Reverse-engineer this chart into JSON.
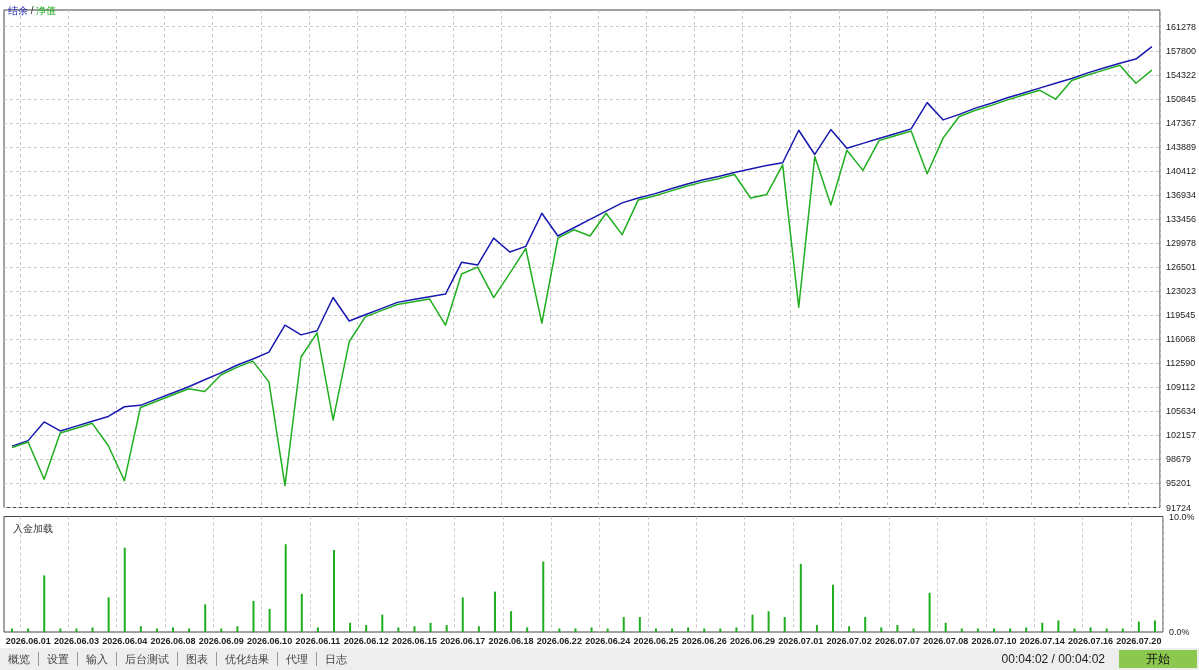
{
  "chart_data": [
    {
      "type": "line",
      "legend": "top left",
      "annotations": [
        "/"
      ],
      "grid": true,
      "marker": "none",
      "tick_labels": "y",
      "categories": [
        null,
        "2026.06.01",
        null,
        null,
        "2026.06.03",
        null,
        null,
        "2026.06.04",
        null,
        null,
        "2026.06.08",
        null,
        null,
        "2026.06.09",
        null,
        null,
        "2026.06.10",
        null,
        null,
        "2026.06.11",
        null,
        null,
        "2026.06.12",
        null,
        null,
        "2026.06.15",
        null,
        null,
        "2026.06.17",
        null,
        null,
        "2026.06.18",
        null,
        null,
        "2026.06.22",
        null,
        null,
        "2026.06.24",
        null,
        null,
        "2026.06.25",
        null,
        null,
        "2026.06.26",
        null,
        null,
        "2026.06.29",
        null,
        null,
        "2026.07.01",
        null,
        null,
        "2026.07.02",
        null,
        null,
        "2026.07.07",
        null,
        null,
        "2026.07.08",
        null,
        null,
        "2026.07.10",
        null,
        null,
        "2026.07.14",
        null,
        null,
        "2026.07.16",
        null,
        null,
        "2026.07.20",
        null
      ],
      "ylim": [
        91724,
        163700
      ],
      "yticks": [
        91724,
        95201,
        98679,
        102157,
        105634,
        109112,
        112590,
        116068,
        119545,
        123023,
        126501,
        129978,
        133456,
        136934,
        140412,
        143889,
        147367,
        150845,
        154322,
        157800,
        161278
      ],
      "series": [
        {
          "name": "结余",
          "color": "#1818b0",
          "values": [
            100600,
            101400,
            104100,
            102800,
            103500,
            104200,
            104900,
            106300,
            106500,
            107400,
            108300,
            109200,
            110200,
            111200,
            112300,
            113200,
            114200,
            118100,
            116700,
            117300,
            122100,
            118700,
            119600,
            120500,
            121400,
            121800,
            122200,
            122600,
            127200,
            126800,
            130700,
            128700,
            129500,
            134300,
            131000,
            132200,
            133400,
            134600,
            135800,
            136500,
            137100,
            137800,
            138500,
            139100,
            139600,
            140200,
            140700,
            141200,
            141600,
            146300,
            142800,
            146400,
            143700,
            144400,
            145100,
            145800,
            146500,
            150300,
            147800,
            148600,
            149500,
            150200,
            151000,
            151700,
            152400,
            153100,
            153800,
            154600,
            155300,
            156000,
            156600,
            158400
          ]
        },
        {
          "name": "净值",
          "color": "#1fae1f",
          "values": [
            100400,
            101200,
            95800,
            102500,
            103200,
            103900,
            100650,
            95600,
            106200,
            107100,
            108000,
            108900,
            108500,
            110900,
            112000,
            112900,
            109900,
            94900,
            113500,
            117000,
            104400,
            115700,
            119300,
            120200,
            121100,
            121500,
            121900,
            118100,
            125500,
            126500,
            122100,
            125600,
            129200,
            118400,
            130700,
            131900,
            131000,
            134300,
            131200,
            136200,
            136800,
            137500,
            138200,
            138800,
            139300,
            139900,
            136500,
            137000,
            141300,
            120700,
            142500,
            135500,
            143400,
            140500,
            144800,
            145500,
            146200,
            140000,
            145200,
            148300,
            149200,
            149900,
            150700,
            151400,
            152100,
            150800,
            153500,
            154300,
            155000,
            155700,
            153100,
            155000
          ]
        }
      ]
    },
    {
      "type": "bar",
      "title": "入金加载",
      "grid": "x",
      "color": "#1fae1f",
      "categories": [
        null,
        "2026.06.01",
        null,
        null,
        "2026.06.03",
        null,
        null,
        "2026.06.04",
        null,
        null,
        "2026.06.08",
        null,
        null,
        "2026.06.09",
        null,
        null,
        "2026.06.10",
        null,
        null,
        "2026.06.11",
        null,
        null,
        "2026.06.12",
        null,
        null,
        "2026.06.15",
        null,
        null,
        "2026.06.17",
        null,
        null,
        "2026.06.18",
        null,
        null,
        "2026.06.22",
        null,
        null,
        "2026.06.24",
        null,
        null,
        "2026.06.25",
        null,
        null,
        "2026.06.26",
        null,
        null,
        "2026.06.29",
        null,
        null,
        "2026.07.01",
        null,
        null,
        "2026.07.02",
        null,
        null,
        "2026.07.07",
        null,
        null,
        "2026.07.08",
        null,
        null,
        "2026.07.10",
        null,
        null,
        "2026.07.14",
        null,
        null,
        "2026.07.16",
        null,
        null,
        "2026.07.20",
        null
      ],
      "values": [
        0.3,
        0.3,
        4.9,
        0.3,
        0.3,
        0.4,
        3.0,
        7.3,
        0.5,
        0.3,
        0.4,
        0.3,
        2.4,
        0.3,
        0.5,
        2.7,
        2.0,
        7.6,
        3.3,
        0.4,
        7.1,
        0.8,
        0.6,
        1.5,
        0.4,
        0.5,
        0.8,
        0.6,
        3.0,
        0.5,
        3.5,
        1.8,
        0.4,
        6.1,
        0.3,
        0.3,
        0.4,
        0.3,
        1.3,
        1.3,
        0.3,
        0.3,
        0.4,
        0.3,
        0.3,
        0.4,
        1.5,
        1.8,
        1.3,
        5.9,
        0.6,
        4.1,
        0.5,
        1.3,
        0.4,
        0.6,
        0.3,
        3.4,
        0.8,
        0.3,
        0.3,
        0.3,
        0.3,
        0.4,
        0.8,
        1.0,
        0.3,
        0.4,
        0.3,
        0.3,
        0.9,
        1.0
      ],
      "ylim": [
        0,
        10
      ],
      "yticks": [
        {
          "value": 0,
          "label": "0.0%"
        },
        {
          "value": 10,
          "label": "10.0%"
        }
      ],
      "annotations": [
        "概览",
        "设置",
        "输入",
        "后台测试",
        "图表",
        "优化结果",
        "代理",
        "日志",
        "00:04:02 / 00:04:02",
        "开始"
      ]
    }
  ]
}
